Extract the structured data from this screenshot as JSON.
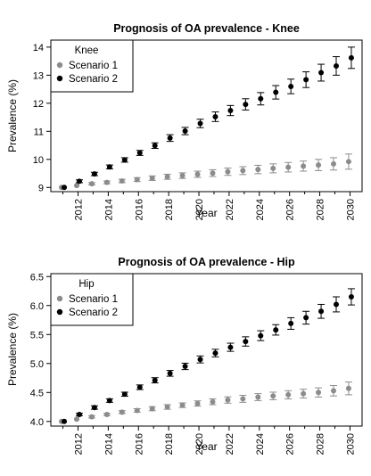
{
  "chart_data": [
    {
      "type": "scatter",
      "title": "Prognosis of OA prevalence - Knee",
      "xlabel": "Year",
      "ylabel": "Prevalence (%)",
      "xlim": [
        2010.2,
        2030.8
      ],
      "ylim": [
        8.85,
        14.25
      ],
      "xticks": [
        2012,
        2014,
        2016,
        2018,
        2020,
        2022,
        2024,
        2026,
        2028,
        2030
      ],
      "yticks": [
        9,
        10,
        11,
        12,
        13,
        14
      ],
      "legend_title": "Knee",
      "legend_position": "top-left",
      "x": [
        2011,
        2012,
        2013,
        2014,
        2015,
        2016,
        2017,
        2018,
        2019,
        2020,
        2021,
        2022,
        2023,
        2024,
        2025,
        2026,
        2027,
        2028,
        2029,
        2030
      ],
      "series": [
        {
          "name": "Scenario 1",
          "color": "#8c8c8c",
          "values": [
            9.0,
            9.07,
            9.13,
            9.18,
            9.23,
            9.28,
            9.33,
            9.38,
            9.42,
            9.47,
            9.51,
            9.56,
            9.6,
            9.64,
            9.68,
            9.72,
            9.76,
            9.8,
            9.84,
            9.92
          ],
          "error": [
            0.02,
            0.03,
            0.04,
            0.05,
            0.06,
            0.07,
            0.08,
            0.09,
            0.1,
            0.11,
            0.12,
            0.13,
            0.14,
            0.15,
            0.16,
            0.17,
            0.18,
            0.2,
            0.22,
            0.27
          ]
        },
        {
          "name": "Scenario 2",
          "color": "#000000",
          "values": [
            9.0,
            9.22,
            9.48,
            9.73,
            9.98,
            10.23,
            10.49,
            10.76,
            11.01,
            11.28,
            11.52,
            11.74,
            11.96,
            12.16,
            12.39,
            12.6,
            12.84,
            13.09,
            13.33,
            13.62
          ],
          "error": [
            0.02,
            0.05,
            0.06,
            0.07,
            0.08,
            0.09,
            0.1,
            0.12,
            0.13,
            0.15,
            0.17,
            0.18,
            0.2,
            0.22,
            0.24,
            0.26,
            0.28,
            0.3,
            0.33,
            0.38
          ]
        }
      ]
    },
    {
      "type": "scatter",
      "title": "Prognosis of OA prevalence - Hip",
      "xlabel": "Year",
      "ylabel": "Prevalence (%)",
      "xlim": [
        2010.2,
        2030.8
      ],
      "ylim": [
        3.92,
        6.55
      ],
      "xticks": [
        2012,
        2014,
        2016,
        2018,
        2020,
        2022,
        2024,
        2026,
        2028,
        2030
      ],
      "yticks": [
        4.0,
        4.5,
        5.0,
        5.5,
        6.0,
        6.5
      ],
      "legend_title": "Hip",
      "legend_position": "top-left",
      "x": [
        2011,
        2012,
        2013,
        2014,
        2015,
        2016,
        2017,
        2018,
        2019,
        2020,
        2021,
        2022,
        2023,
        2024,
        2025,
        2026,
        2027,
        2028,
        2029,
        2030
      ],
      "series": [
        {
          "name": "Scenario 1",
          "color": "#8c8c8c",
          "values": [
            4.0,
            4.04,
            4.08,
            4.12,
            4.16,
            4.19,
            4.22,
            4.25,
            4.28,
            4.31,
            4.34,
            4.37,
            4.39,
            4.42,
            4.44,
            4.46,
            4.48,
            4.5,
            4.53,
            4.57
          ],
          "error": [
            0.01,
            0.015,
            0.02,
            0.02,
            0.025,
            0.03,
            0.035,
            0.04,
            0.04,
            0.045,
            0.05,
            0.055,
            0.06,
            0.06,
            0.065,
            0.07,
            0.075,
            0.08,
            0.09,
            0.11
          ]
        },
        {
          "name": "Scenario 2",
          "color": "#000000",
          "values": [
            4.0,
            4.12,
            4.24,
            4.36,
            4.47,
            4.59,
            4.71,
            4.83,
            4.95,
            5.07,
            5.18,
            5.28,
            5.38,
            5.48,
            5.58,
            5.69,
            5.79,
            5.9,
            6.02,
            6.15
          ],
          "error": [
            0.01,
            0.02,
            0.03,
            0.03,
            0.035,
            0.04,
            0.045,
            0.05,
            0.055,
            0.06,
            0.065,
            0.07,
            0.08,
            0.085,
            0.09,
            0.1,
            0.11,
            0.12,
            0.13,
            0.14
          ]
        }
      ]
    }
  ]
}
